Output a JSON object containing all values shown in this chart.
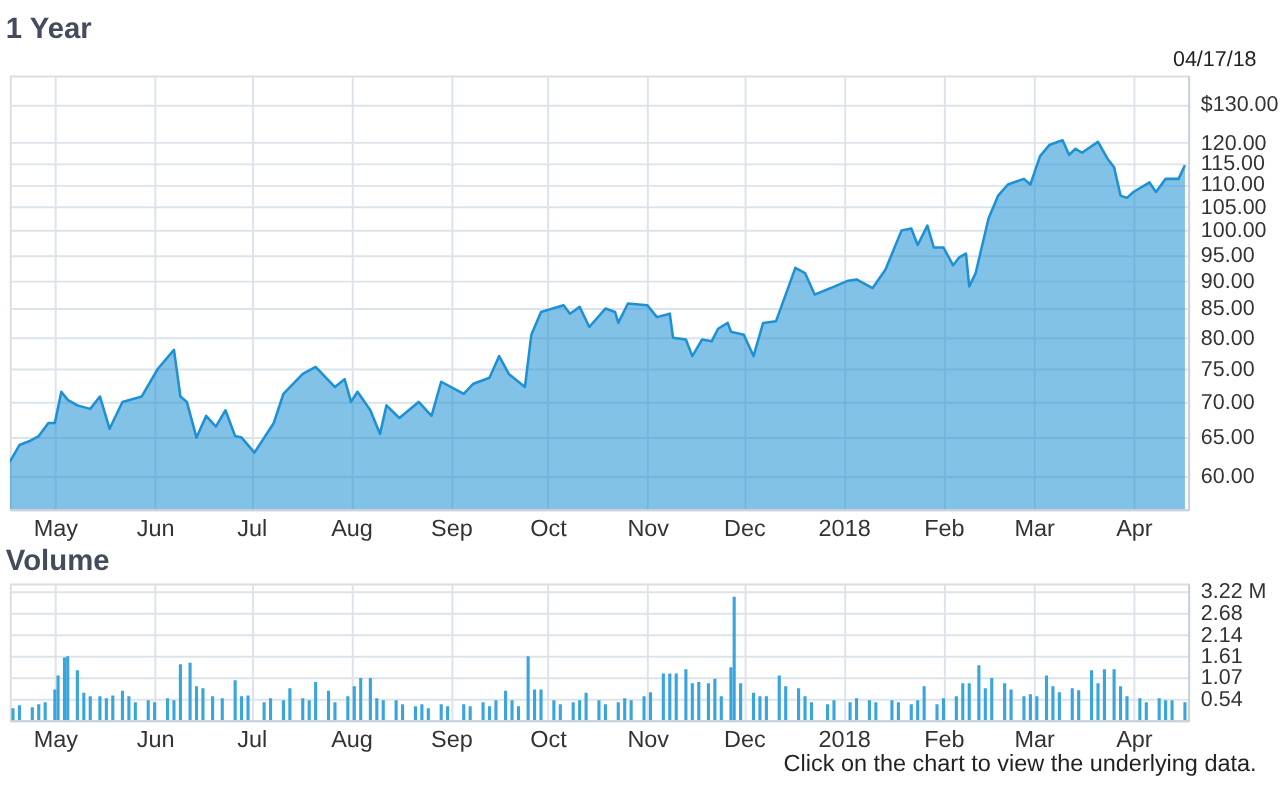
{
  "chart_data": [
    {
      "type": "area",
      "title": "1 Year",
      "color": "#1e90d4",
      "grid": true,
      "log": true,
      "annotations": [
        "04/17/18"
      ],
      "x": [
        "2017-04-17",
        "2017-04-20",
        "2017-04-23",
        "2017-04-26",
        "2017-04-29",
        "2017-05-01",
        "2017-05-03",
        "2017-05-05",
        "2017-05-08",
        "2017-05-12",
        "2017-05-15",
        "2017-05-18",
        "2017-05-22",
        "2017-05-28",
        "2017-06-02",
        "2017-06-07",
        "2017-06-09",
        "2017-06-11",
        "2017-06-14",
        "2017-06-17",
        "2017-06-20",
        "2017-06-23",
        "2017-06-26",
        "2017-06-28",
        "2017-07-02",
        "2017-07-08",
        "2017-07-11",
        "2017-07-17",
        "2017-07-21",
        "2017-07-27",
        "2017-07-30",
        "2017-08-01",
        "2017-08-03",
        "2017-08-07",
        "2017-08-10",
        "2017-08-12",
        "2017-08-16",
        "2017-08-22",
        "2017-08-26",
        "2017-08-29",
        "2017-09-05",
        "2017-09-08",
        "2017-09-13",
        "2017-09-16",
        "2017-09-19",
        "2017-09-24",
        "2017-09-26",
        "2017-09-29",
        "2017-10-06",
        "2017-10-08",
        "2017-10-11",
        "2017-10-14",
        "2017-10-19",
        "2017-10-22",
        "2017-10-23",
        "2017-10-26",
        "2017-11-01",
        "2017-11-04",
        "2017-11-08",
        "2017-11-09",
        "2017-11-13",
        "2017-11-15",
        "2017-11-18",
        "2017-11-21",
        "2017-11-23",
        "2017-11-26",
        "2017-11-27",
        "2017-12-01",
        "2017-12-04",
        "2017-12-07",
        "2017-12-11",
        "2017-12-14",
        "2017-12-17",
        "2017-12-20",
        "2017-12-23",
        "2017-12-28",
        "2018-01-02",
        "2018-01-05",
        "2018-01-10",
        "2018-01-14",
        "2018-01-19",
        "2018-01-22",
        "2018-01-24",
        "2018-01-27",
        "2018-01-29",
        "2018-02-01",
        "2018-02-04",
        "2018-02-06",
        "2018-02-08",
        "2018-02-09",
        "2018-02-11",
        "2018-02-15",
        "2018-02-18",
        "2018-02-21",
        "2018-02-26",
        "2018-02-28",
        "2018-03-03",
        "2018-03-06",
        "2018-03-10",
        "2018-03-12",
        "2018-03-14",
        "2018-03-16",
        "2018-03-21",
        "2018-03-24",
        "2018-03-26",
        "2018-03-28",
        "2018-03-30",
        "2018-04-01",
        "2018-04-06",
        "2018-04-08",
        "2018-04-11",
        "2018-04-15",
        "2018-04-17"
      ],
      "values": [
        61.8,
        64,
        64.5,
        65.2,
        67,
        67,
        71.5,
        70.3,
        69.5,
        69,
        70.8,
        66.2,
        70,
        70.8,
        75,
        78,
        70.8,
        70,
        65,
        68,
        66.5,
        68.8,
        65.2,
        65,
        63,
        67,
        71.2,
        74.2,
        75.3,
        72.2,
        73.4,
        70,
        71.5,
        68.8,
        65.5,
        69.5,
        67.7,
        70,
        68,
        73,
        71.2,
        72.7,
        73.6,
        77,
        74.2,
        72.2,
        80.5,
        84.4,
        85.6,
        84.1,
        85.3,
        81.8,
        85,
        84.4,
        82.5,
        85.9,
        85.6,
        83.5,
        84.1,
        80,
        79.7,
        77,
        79.7,
        79.4,
        81.5,
        82.5,
        81,
        80.5,
        77,
        82.5,
        82.8,
        87.5,
        92.5,
        91.5,
        87.5,
        88.7,
        90,
        90.3,
        88.7,
        92.2,
        100,
        100.4,
        97,
        101,
        96.5,
        96.5,
        93,
        94.6,
        95.3,
        89,
        91.5,
        102.5,
        107.5,
        110,
        111.3,
        110,
        116.7,
        119.5,
        120.6,
        117,
        118.5,
        117.5,
        120.2,
        116,
        114,
        107.5,
        107,
        108.3,
        110.5,
        108.3,
        111.3,
        111.3,
        114.5
      ],
      "xlim": [
        "2017-04-17",
        "2018-04-18"
      ],
      "xticks": [
        {
          "value": "2017-05-01",
          "label": "May"
        },
        {
          "value": "2017-06-01",
          "label": "Jun"
        },
        {
          "value": "2017-07-01",
          "label": "Jul"
        },
        {
          "value": "2017-08-01",
          "label": "Aug"
        },
        {
          "value": "2017-09-01",
          "label": "Sep"
        },
        {
          "value": "2017-10-01",
          "label": "Oct"
        },
        {
          "value": "2017-11-01",
          "label": "Nov"
        },
        {
          "value": "2017-12-01",
          "label": "Dec"
        },
        {
          "value": "2018-01-01",
          "label": "2018"
        },
        {
          "value": "2018-02-01",
          "label": "Feb"
        },
        {
          "value": "2018-03-01",
          "label": "Mar"
        },
        {
          "value": "2018-04-01",
          "label": "Apr"
        }
      ],
      "ylim": [
        56,
        138
      ],
      "yticks": [
        {
          "value": 60,
          "label": "60.00"
        },
        {
          "value": 65,
          "label": "65.00"
        },
        {
          "value": 70,
          "label": "70.00"
        },
        {
          "value": 75,
          "label": "75.00"
        },
        {
          "value": 80,
          "label": "80.00"
        },
        {
          "value": 85,
          "label": "85.00"
        },
        {
          "value": 90,
          "label": "90.00"
        },
        {
          "value": 95,
          "label": "95.00"
        },
        {
          "value": 100,
          "label": "100.00"
        },
        {
          "value": 105,
          "label": "105.00"
        },
        {
          "value": 110,
          "label": "110.00"
        },
        {
          "value": 115,
          "label": "115.00"
        },
        {
          "value": 120,
          "label": "120.00"
        },
        {
          "value": 130,
          "label": "$130.00"
        }
      ]
    },
    {
      "type": "bar",
      "title": "Volume",
      "color": "#3aa5dc",
      "grid": true,
      "annotations": [
        "Click on the chart to view the underlying data."
      ],
      "x": [
        "2017-04-18",
        "2017-04-20",
        "2017-04-24",
        "2017-04-26",
        "2017-04-28",
        "2017-05-01",
        "2017-05-02",
        "2017-05-04",
        "2017-05-05",
        "2017-05-08",
        "2017-05-10",
        "2017-05-12",
        "2017-05-15",
        "2017-05-17",
        "2017-05-19",
        "2017-05-22",
        "2017-05-24",
        "2017-05-26",
        "2017-05-30",
        "2017-06-01",
        "2017-06-05",
        "2017-06-07",
        "2017-06-09",
        "2017-06-12",
        "2017-06-14",
        "2017-06-16",
        "2017-06-19",
        "2017-06-22",
        "2017-06-26",
        "2017-06-28",
        "2017-06-30",
        "2017-07-05",
        "2017-07-07",
        "2017-07-11",
        "2017-07-13",
        "2017-07-17",
        "2017-07-19",
        "2017-07-21",
        "2017-07-25",
        "2017-07-27",
        "2017-07-31",
        "2017-08-02",
        "2017-08-04",
        "2017-08-07",
        "2017-08-09",
        "2017-08-11",
        "2017-08-15",
        "2017-08-17",
        "2017-08-21",
        "2017-08-23",
        "2017-08-25",
        "2017-08-29",
        "2017-08-31",
        "2017-09-05",
        "2017-09-07",
        "2017-09-11",
        "2017-09-13",
        "2017-09-15",
        "2017-09-18",
        "2017-09-20",
        "2017-09-22",
        "2017-09-25",
        "2017-09-27",
        "2017-09-29",
        "2017-10-03",
        "2017-10-05",
        "2017-10-09",
        "2017-10-11",
        "2017-10-13",
        "2017-10-17",
        "2017-10-19",
        "2017-10-23",
        "2017-10-25",
        "2017-10-27",
        "2017-10-31",
        "2017-11-02",
        "2017-11-06",
        "2017-11-08",
        "2017-11-10",
        "2017-11-13",
        "2017-11-15",
        "2017-11-17",
        "2017-11-20",
        "2017-11-22",
        "2017-11-24",
        "2017-11-27",
        "2017-11-28",
        "2017-11-30",
        "2017-12-04",
        "2017-12-06",
        "2017-12-08",
        "2017-12-12",
        "2017-12-14",
        "2017-12-18",
        "2017-12-20",
        "2017-12-22",
        "2017-12-27",
        "2017-12-29",
        "2018-01-03",
        "2018-01-05",
        "2018-01-09",
        "2018-01-11",
        "2018-01-16",
        "2018-01-18",
        "2018-01-22",
        "2018-01-24",
        "2018-01-26",
        "2018-01-30",
        "2018-02-01",
        "2018-02-05",
        "2018-02-07",
        "2018-02-09",
        "2018-02-12",
        "2018-02-14",
        "2018-02-16",
        "2018-02-20",
        "2018-02-22",
        "2018-02-26",
        "2018-02-28",
        "2018-03-02",
        "2018-03-05",
        "2018-03-07",
        "2018-03-09",
        "2018-03-13",
        "2018-03-15",
        "2018-03-19",
        "2018-03-21",
        "2018-03-23",
        "2018-03-26",
        "2018-03-28",
        "2018-03-30",
        "2018-04-03",
        "2018-04-05",
        "2018-04-09",
        "2018-04-11",
        "2018-04-13",
        "2018-04-17"
      ],
      "values": [
        0.3,
        0.38,
        0.33,
        0.4,
        0.45,
        0.77,
        1.12,
        1.57,
        1.6,
        1.25,
        0.69,
        0.6,
        0.6,
        0.55,
        0.62,
        0.74,
        0.6,
        0.45,
        0.5,
        0.45,
        0.55,
        0.5,
        1.4,
        1.44,
        0.85,
        0.8,
        0.6,
        0.55,
        1.0,
        0.6,
        0.62,
        0.45,
        0.55,
        0.5,
        0.8,
        0.55,
        0.5,
        0.96,
        0.74,
        0.45,
        0.6,
        0.85,
        1.06,
        1.06,
        0.55,
        0.5,
        0.5,
        0.4,
        0.35,
        0.4,
        0.3,
        0.4,
        0.35,
        0.4,
        0.35,
        0.45,
        0.35,
        0.5,
        0.74,
        0.5,
        0.35,
        1.6,
        0.77,
        0.77,
        0.5,
        0.4,
        0.45,
        0.5,
        0.69,
        0.5,
        0.4,
        0.45,
        0.55,
        0.5,
        0.6,
        0.7,
        1.17,
        1.17,
        1.17,
        1.28,
        0.93,
        0.96,
        0.93,
        1.04,
        0.6,
        1.33,
        3.09,
        0.93,
        0.69,
        0.6,
        0.6,
        1.12,
        0.85,
        0.8,
        0.6,
        0.45,
        0.4,
        0.5,
        0.45,
        0.55,
        0.5,
        0.45,
        0.5,
        0.45,
        0.4,
        0.5,
        0.85,
        0.4,
        0.55,
        0.6,
        0.93,
        0.93,
        1.38,
        0.8,
        1.06,
        0.93,
        0.77,
        0.6,
        0.65,
        0.6,
        1.12,
        0.85,
        0.7,
        0.8,
        0.75,
        1.25,
        0.93,
        1.28,
        1.28,
        0.85,
        0.6,
        0.55,
        0.45,
        0.55,
        0.5,
        0.5,
        0.45
      ],
      "xlim": [
        "2017-04-17",
        "2018-04-18"
      ],
      "xticks": [
        {
          "value": "2017-05-01",
          "label": "May"
        },
        {
          "value": "2017-06-01",
          "label": "Jun"
        },
        {
          "value": "2017-07-01",
          "label": "Jul"
        },
        {
          "value": "2017-08-01",
          "label": "Aug"
        },
        {
          "value": "2017-09-01",
          "label": "Sep"
        },
        {
          "value": "2017-10-01",
          "label": "Oct"
        },
        {
          "value": "2017-11-01",
          "label": "Nov"
        },
        {
          "value": "2017-12-01",
          "label": "Dec"
        },
        {
          "value": "2018-01-01",
          "label": "2018"
        },
        {
          "value": "2018-02-01",
          "label": "Feb"
        },
        {
          "value": "2018-03-01",
          "label": "Mar"
        },
        {
          "value": "2018-04-01",
          "label": "Apr"
        }
      ],
      "ylim": [
        0,
        3.42
      ],
      "yticks": [
        {
          "value": 0.54,
          "label": "0.54"
        },
        {
          "value": 1.07,
          "label": "1.07"
        },
        {
          "value": 1.61,
          "label": "1.61"
        },
        {
          "value": 2.14,
          "label": "2.14"
        },
        {
          "value": 2.68,
          "label": "2.68"
        },
        {
          "value": 3.22,
          "label": "3.22 M"
        }
      ]
    }
  ]
}
